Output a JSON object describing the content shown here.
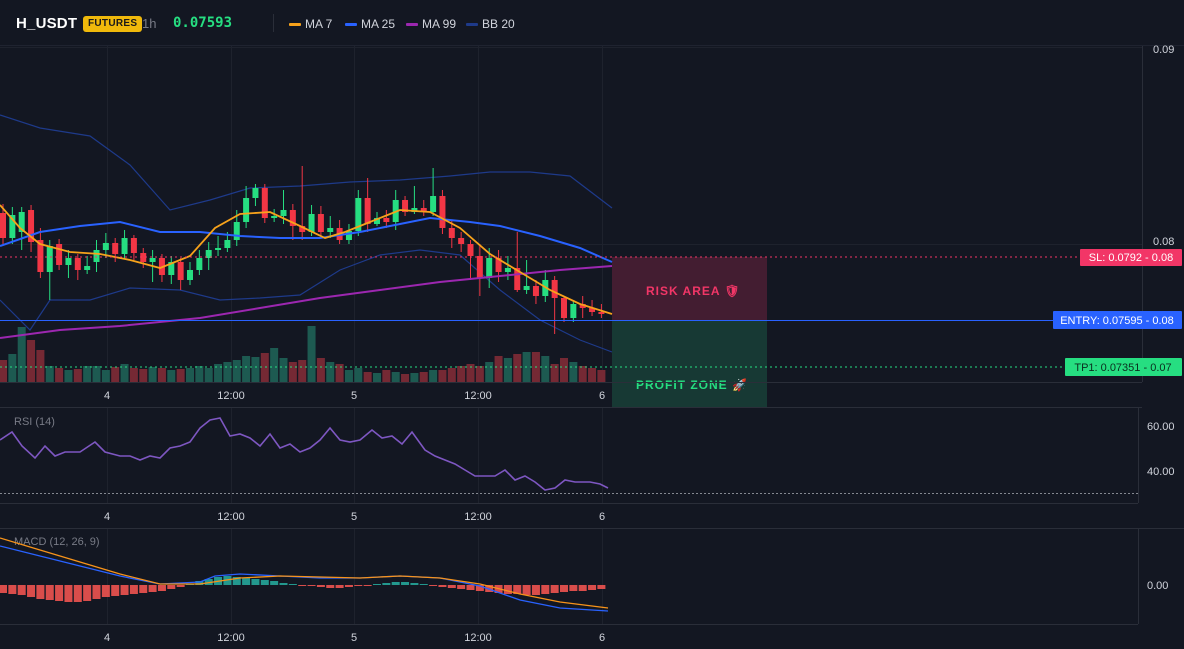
{
  "header": {
    "symbol": "H_USDT",
    "badge": "FUTURES",
    "timeframe": "1h",
    "last_price": "0.07593",
    "legend": [
      {
        "label": "MA 7",
        "color": "#f7a21b"
      },
      {
        "label": "MA 25",
        "color": "#2962ff"
      },
      {
        "label": "MA 99",
        "color": "#9c27b0"
      },
      {
        "label": "BB 20",
        "color": "#1e3a8a"
      }
    ]
  },
  "colors": {
    "up": "#26de81",
    "down": "#f23645",
    "sl": "#f23667",
    "entry": "#2962ff",
    "tp": "#26de81"
  },
  "price_axis": {
    "labels": [
      "0.09",
      "0.08"
    ]
  },
  "time_axis": {
    "labels": [
      "4",
      "12:00",
      "5",
      "12:00",
      "6"
    ]
  },
  "trade": {
    "sl_label": "SL: 0.0792",
    "sl_axis": "0.08",
    "entry_label": "ENTRY: 0.07595",
    "entry_axis": "0.08",
    "tp_label": "TP1: 0.07351",
    "tp_axis": "0.07",
    "risk_label": "RISK AREA 🛡",
    "profit_label": "PROFIT ZONE 🚀"
  },
  "rsi": {
    "title": "RSI (14)",
    "axis": [
      "60.00",
      "40.00"
    ]
  },
  "macd": {
    "title": "MACD (12, 26, 9)",
    "axis": [
      "0.00"
    ]
  }
}
